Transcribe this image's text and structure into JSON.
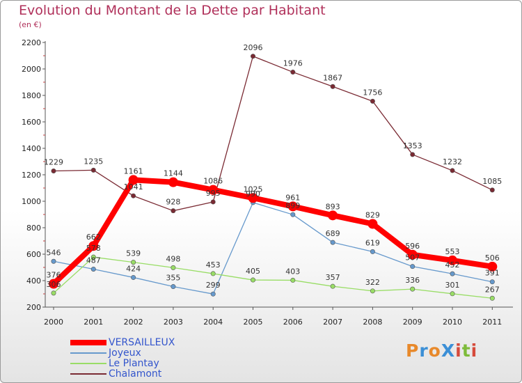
{
  "chart": {
    "title": "Evolution du Montant de la Dette par Habitant",
    "subtitle": "(en €)"
  },
  "logo": {
    "text": "ProXiti",
    "colors": [
      "#e8892b",
      "#3b8fd6",
      "#e8892b",
      "#3b8fd6",
      "#d64a3b",
      "#7dbb3a",
      "#d64a3b"
    ]
  },
  "chart_data": {
    "type": "line",
    "title": "Evolution du Montant de la Dette par Habitant",
    "subtitle": "(en €)",
    "xlabel": "",
    "ylabel": "",
    "x": [
      "2000",
      "2001",
      "2002",
      "2003",
      "2004",
      "2005",
      "2006",
      "2007",
      "2008",
      "2009",
      "2010",
      "2011"
    ],
    "ylim": [
      200,
      2200
    ],
    "yticks": [
      200,
      400,
      600,
      800,
      1000,
      1200,
      1400,
      1600,
      1800,
      2000,
      2200
    ],
    "grid": false,
    "legend_position": "bottom-left",
    "series": [
      {
        "name": "VERSAILLEUX",
        "color": "#ff0000",
        "values": [
          376,
          662,
          1161,
          1144,
          1086,
          1025,
          961,
          893,
          829,
          596,
          553,
          506
        ]
      },
      {
        "name": "Joyeux",
        "color": "#6699cc",
        "values": [
          546,
          487,
          424,
          355,
          299,
          990,
          899,
          689,
          619,
          507,
          452,
          391
        ]
      },
      {
        "name": "Le Plantay",
        "color": "#99dd66",
        "values": [
          306,
          578,
          539,
          498,
          453,
          405,
          403,
          357,
          322,
          336,
          301,
          267
        ]
      },
      {
        "name": "Chalamont",
        "color": "#7a2a33",
        "values": [
          1229,
          1235,
          1041,
          928,
          995,
          2096,
          1976,
          1867,
          1756,
          1353,
          1232,
          1085
        ]
      }
    ]
  }
}
